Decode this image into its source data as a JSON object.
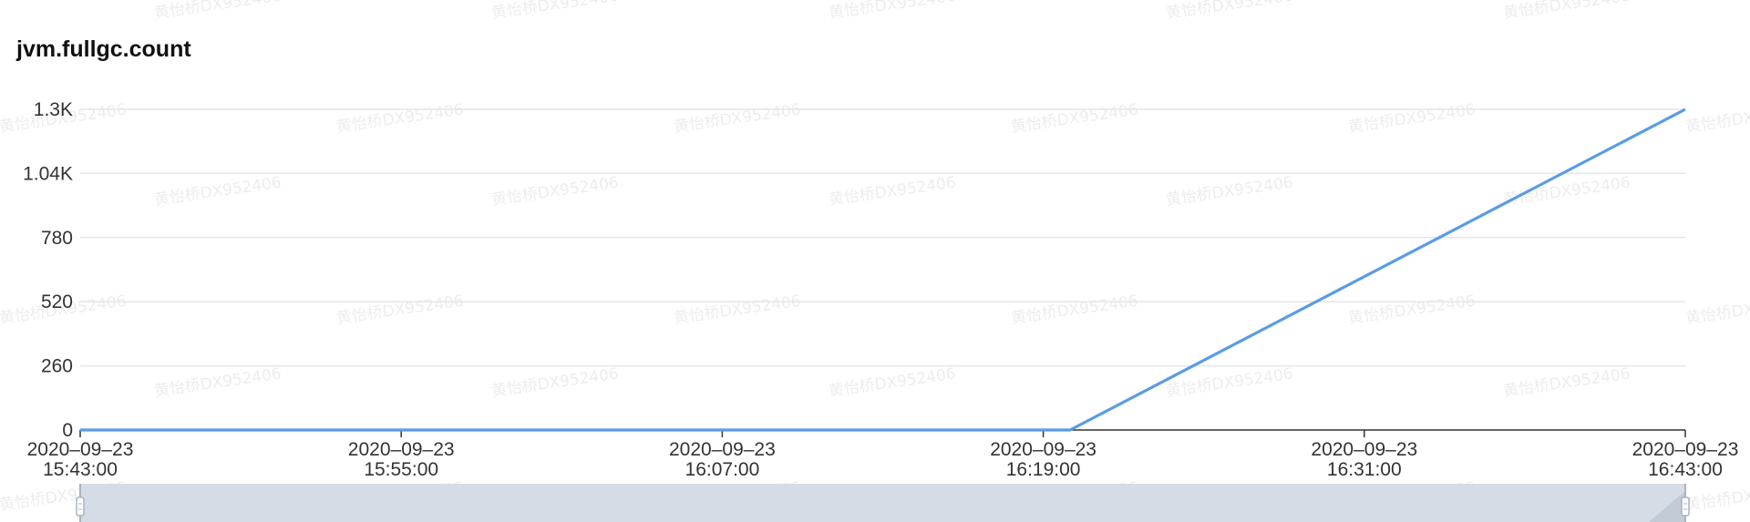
{
  "title": "jvm.fullgc.count",
  "watermark": "黄怡桥DX952406",
  "colors": {
    "line": "#5b9be6",
    "grid": "#e6e6e6",
    "axis": "#333333",
    "zoom_bg": "#d6dce6",
    "zoom_handle": "#a8b3c2"
  },
  "chart_data": {
    "type": "line",
    "title": "jvm.fullgc.count",
    "xlabel": "",
    "ylabel": "",
    "x_ticks": [
      [
        "2020–09–23",
        "15:43:00"
      ],
      [
        "2020–09–23",
        "15:55:00"
      ],
      [
        "2020–09–23",
        "16:07:00"
      ],
      [
        "2020–09–23",
        "16:19:00"
      ],
      [
        "2020–09–23",
        "16:31:00"
      ],
      [
        "2020–09–23",
        "16:43:00"
      ]
    ],
    "y_ticks": [
      "0",
      "260",
      "520",
      "780",
      "1.04K",
      "1.3K"
    ],
    "xlim": [
      "15:43:00",
      "16:43:00"
    ],
    "ylim": [
      0,
      1300
    ],
    "grid": true,
    "series": [
      {
        "x": [
          "15:43:00",
          "16:19:00",
          "16:20:00",
          "16:43:00"
        ],
        "y": [
          0,
          0,
          0,
          1300
        ]
      }
    ],
    "legend": false
  },
  "zoom_slider": {
    "range": [
      0,
      1
    ]
  }
}
